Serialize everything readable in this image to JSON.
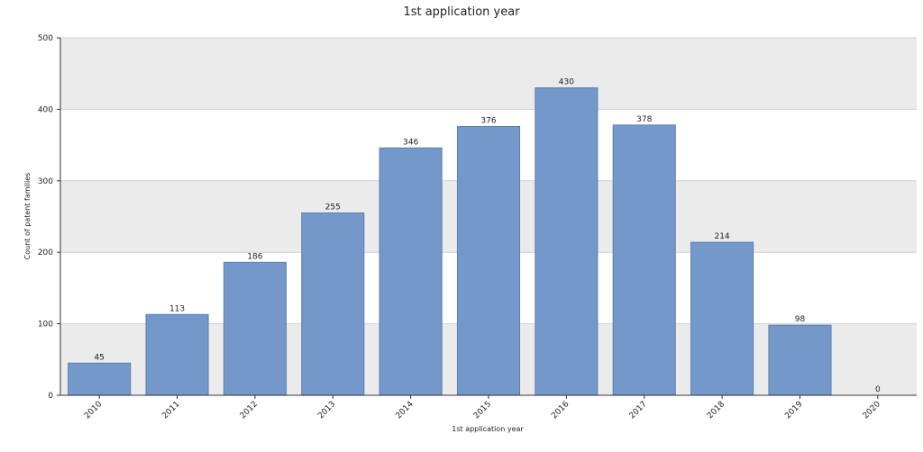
{
  "chart_data": {
    "type": "bar",
    "title": "1st application year",
    "xlabel": "1st application year",
    "ylabel": "Count of patent families",
    "categories": [
      "2010",
      "2011",
      "2012",
      "2013",
      "2014",
      "2015",
      "2016",
      "2017",
      "2018",
      "2019",
      "2020"
    ],
    "values": [
      45,
      113,
      186,
      255,
      346,
      376,
      430,
      378,
      214,
      98,
      0
    ],
    "ylim": [
      0,
      500
    ],
    "yticks": [
      0,
      100,
      200,
      300,
      400,
      500
    ],
    "grid": true,
    "legend": "none",
    "colors": {
      "bar_fill": "#7398c9",
      "bar_stroke": "#5a7fb3",
      "band": "#ebebeb",
      "gridline": "#d0d0d0",
      "axis": "#333333"
    }
  }
}
